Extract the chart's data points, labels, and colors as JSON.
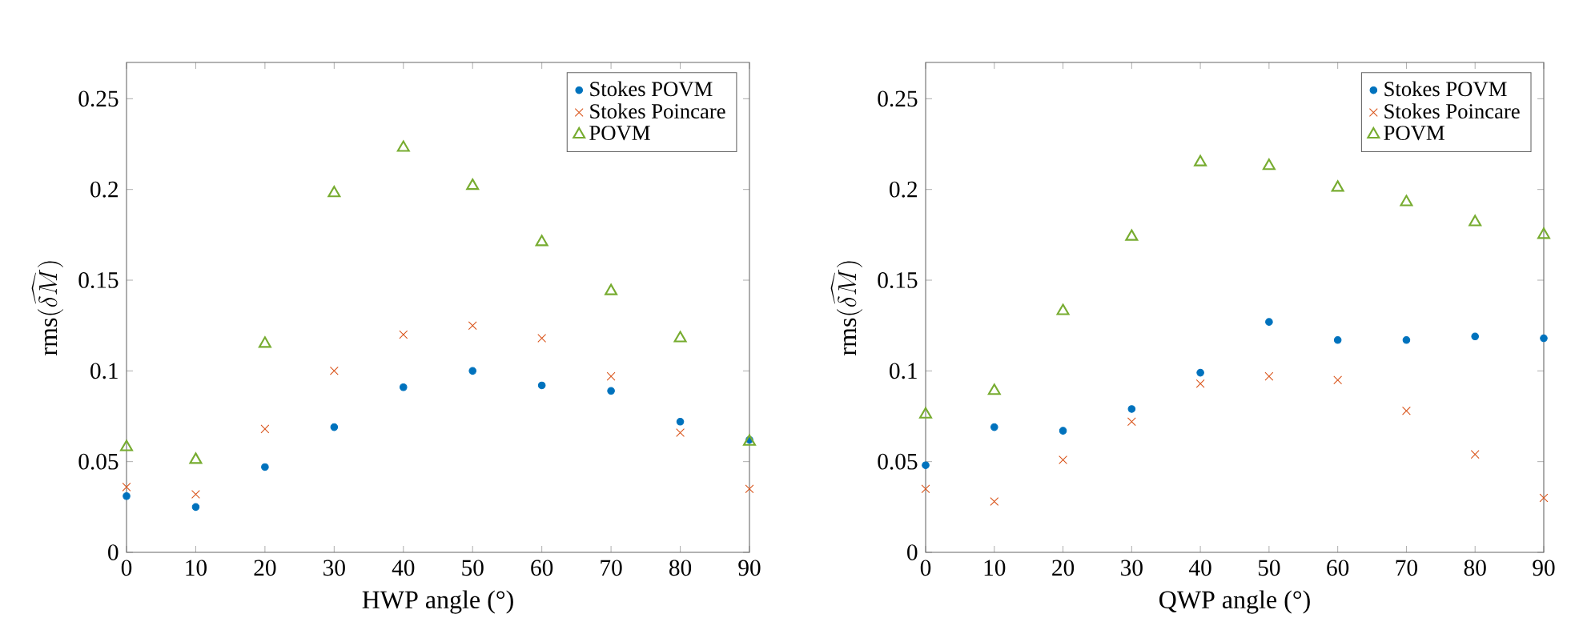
{
  "chart_data": [
    {
      "type": "scatter",
      "xlabel": "HWP angle (°)",
      "ylabel": "\\mathrm{rms}(\\widehat{\\delta M})",
      "x": [
        0,
        10,
        20,
        30,
        40,
        50,
        60,
        70,
        80,
        90
      ],
      "xlim": [
        0,
        90
      ],
      "ylim": [
        0,
        0.27
      ],
      "xticks": [
        0,
        10,
        20,
        30,
        40,
        50,
        60,
        70,
        80,
        90
      ],
      "yticks": [
        0,
        0.05,
        0.1,
        0.15,
        0.2,
        0.25
      ],
      "legend": "top right",
      "series": [
        {
          "name": "Stokes POVM",
          "color": "#0072bd",
          "marker": "circle",
          "values": [
            0.031,
            0.025,
            0.047,
            0.069,
            0.091,
            0.1,
            0.092,
            0.089,
            0.072,
            0.062
          ]
        },
        {
          "name": "Stokes Poincare",
          "color": "#d95319",
          "marker": "cross",
          "values": [
            0.036,
            0.032,
            0.068,
            0.1,
            0.12,
            0.125,
            0.118,
            0.097,
            0.066,
            0.035
          ]
        },
        {
          "name": "POVM",
          "color": "#77ac30",
          "marker": "triangle",
          "values": [
            0.058,
            0.051,
            0.115,
            0.198,
            0.223,
            0.202,
            0.171,
            0.144,
            0.118,
            0.061
          ]
        }
      ]
    },
    {
      "type": "scatter",
      "xlabel": "QWP angle (°)",
      "ylabel": "\\mathrm{rms}(\\widehat{\\delta M})",
      "x": [
        0,
        10,
        20,
        30,
        40,
        50,
        60,
        70,
        80,
        90
      ],
      "xlim": [
        0,
        90
      ],
      "ylim": [
        0,
        0.27
      ],
      "xticks": [
        0,
        10,
        20,
        30,
        40,
        50,
        60,
        70,
        80,
        90
      ],
      "yticks": [
        0,
        0.05,
        0.1,
        0.15,
        0.2,
        0.25
      ],
      "legend": "top right",
      "series": [
        {
          "name": "Stokes POVM",
          "color": "#0072bd",
          "marker": "circle",
          "values": [
            0.048,
            0.069,
            0.067,
            0.079,
            0.099,
            0.127,
            0.117,
            0.117,
            0.119,
            0.118
          ]
        },
        {
          "name": "Stokes Poincare",
          "color": "#d95319",
          "marker": "cross",
          "values": [
            0.035,
            0.028,
            0.051,
            0.072,
            0.093,
            0.097,
            0.095,
            0.078,
            0.054,
            0.03
          ]
        },
        {
          "name": "POVM",
          "color": "#77ac30",
          "marker": "triangle",
          "values": [
            0.076,
            0.089,
            0.133,
            0.174,
            0.215,
            0.213,
            0.201,
            0.193,
            0.182,
            0.175
          ]
        }
      ]
    }
  ]
}
